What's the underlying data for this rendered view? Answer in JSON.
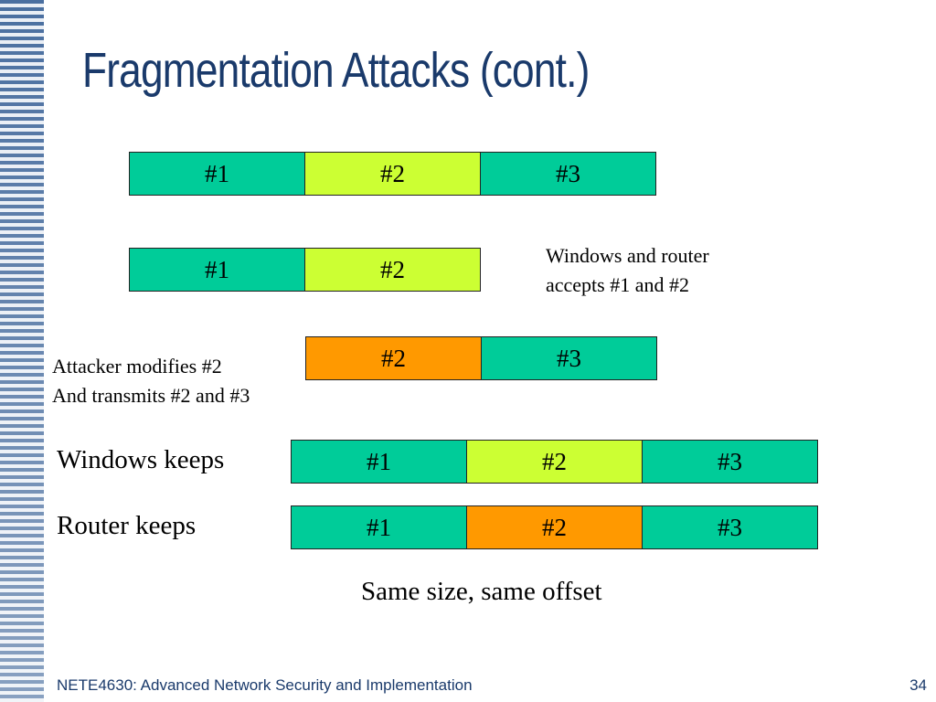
{
  "title": "Fragmentation Attacks (cont.)",
  "colors": {
    "green": "#00cc99",
    "lime": "#ccff33",
    "orange": "#ff9900",
    "title": "#1a3a6b"
  },
  "rows": {
    "original": [
      "#1",
      "#2",
      "#3"
    ],
    "accepted": [
      "#1",
      "#2"
    ],
    "attacker": [
      "#2",
      "#3"
    ],
    "windows": [
      "#1",
      "#2",
      "#3"
    ],
    "router": [
      "#1",
      "#2",
      "#3"
    ]
  },
  "notes": {
    "accepted_line1": "Windows and router",
    "accepted_line2": "accepts #1 and #2",
    "attacker_line1": "Attacker modifies #2",
    "attacker_line2": "And transmits #2 and #3",
    "windows_keeps": "Windows keeps",
    "router_keeps": "Router keeps",
    "same": "Same size, same offset"
  },
  "footer": {
    "course": "NETE4630: Advanced Network Security and Implementation",
    "page": "34"
  }
}
